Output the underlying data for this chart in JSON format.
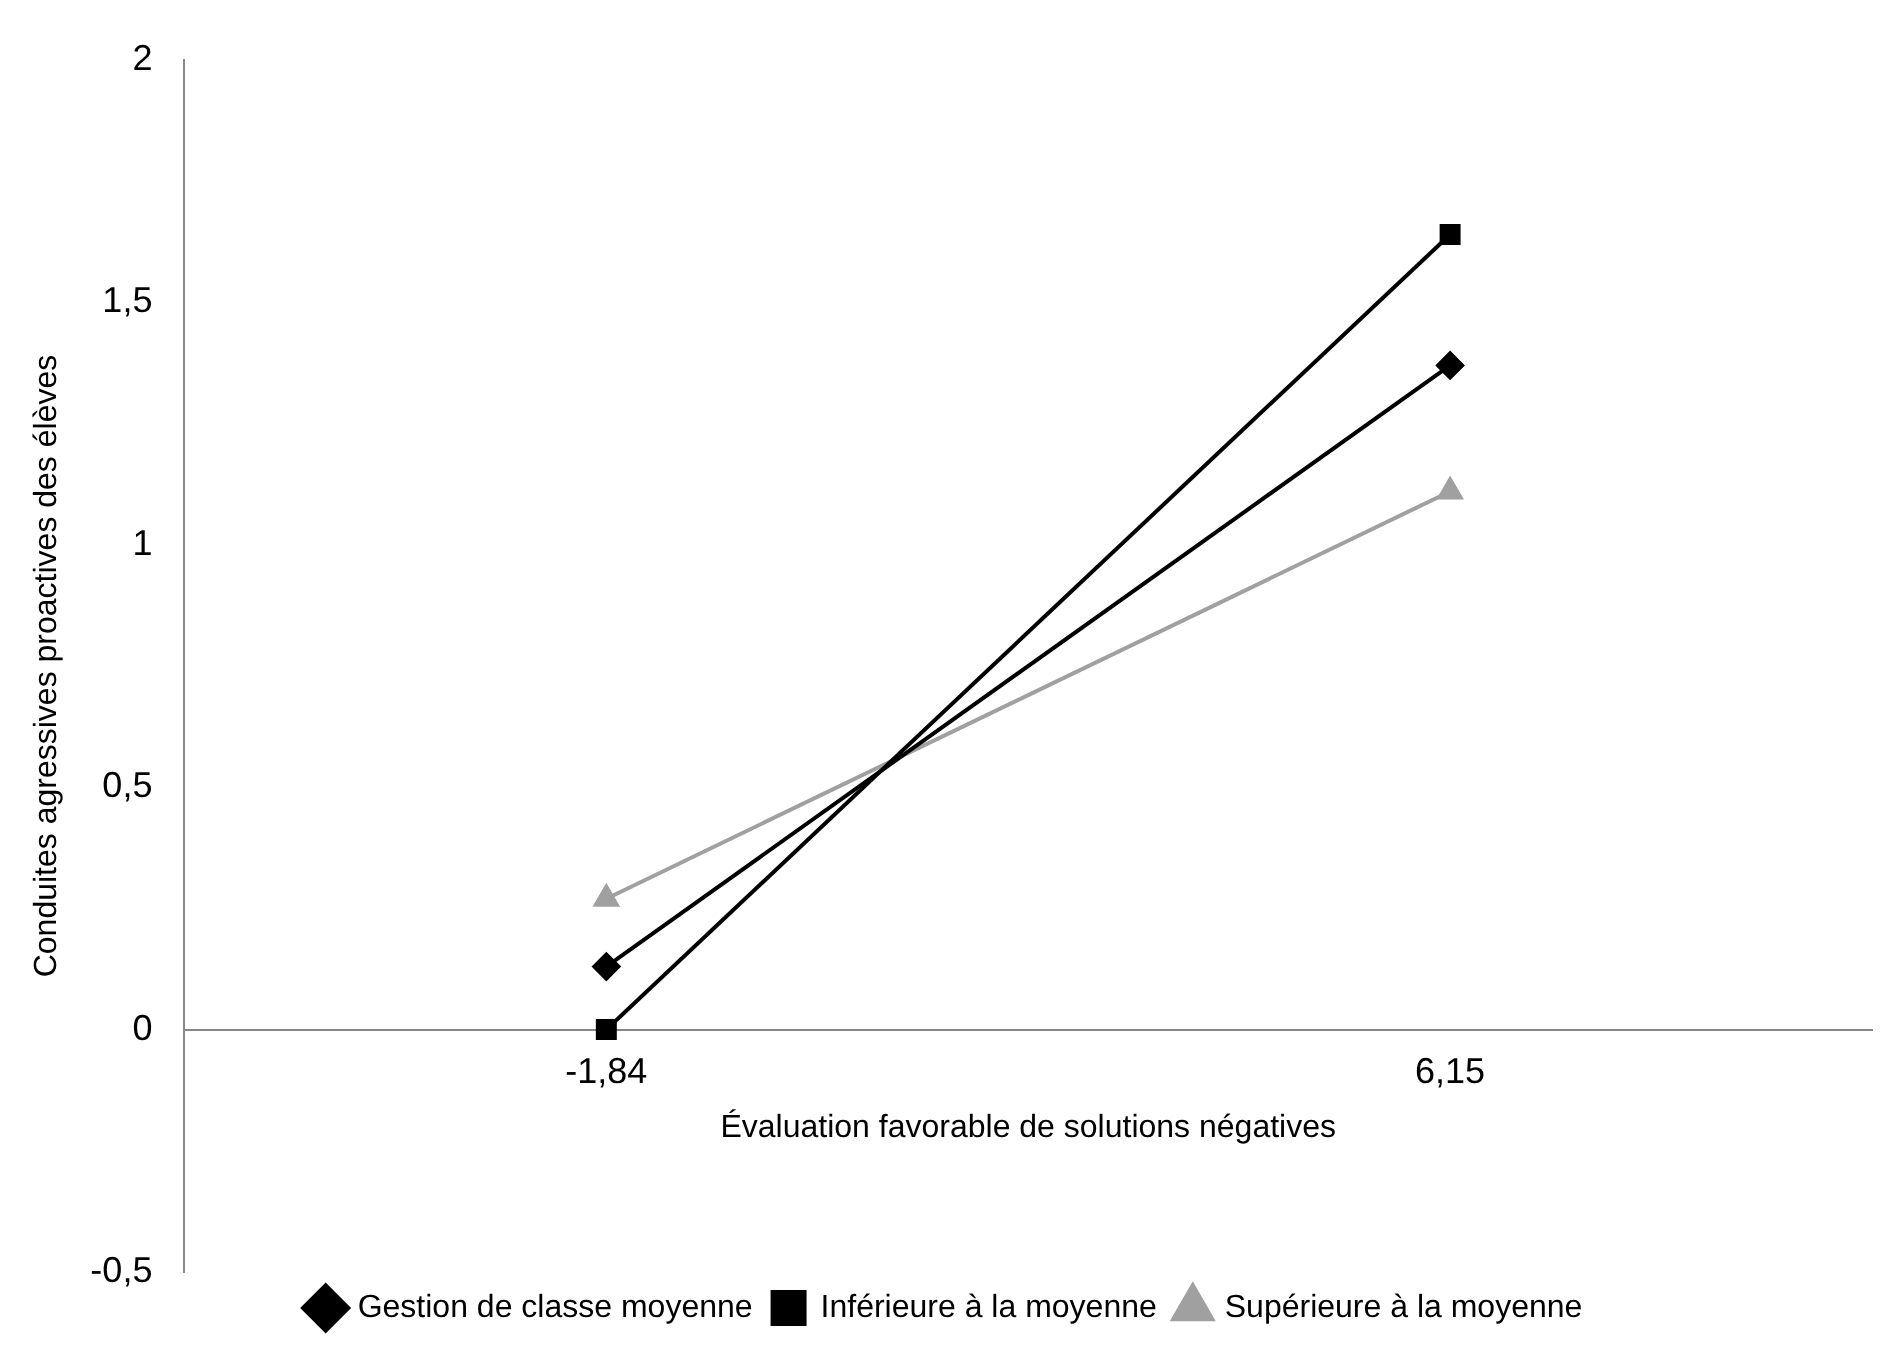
{
  "chart_data": {
    "type": "line",
    "xlabel": "Évaluation favorable de solutions négatives",
    "ylabel": "Conduites agressives proactives des élèves",
    "categories": [
      "-1,84",
      "6,15"
    ],
    "series": [
      {
        "name": "Gestion de classe moyenne",
        "color": "#000000",
        "marker": "diamond",
        "values": [
          0.13,
          1.37
        ]
      },
      {
        "name": "Inférieure à la moyenne",
        "color": "#000000",
        "marker": "square",
        "values": [
          0,
          1.64
        ]
      },
      {
        "name": "Supérieure à la moyenne",
        "color": "#a0a0a0",
        "marker": "triangle",
        "values": [
          0.27,
          1.11
        ]
      }
    ],
    "ylim": [
      -0.5,
      2
    ],
    "yticks": [
      {
        "value": -0.5,
        "label": "-0,5"
      },
      0,
      {
        "value": 0.5,
        "label": "0,5"
      },
      1,
      {
        "value": 1.5,
        "label": "1,5"
      },
      2
    ],
    "grid": false,
    "legend": "bottom",
    "line_style": "solid"
  }
}
